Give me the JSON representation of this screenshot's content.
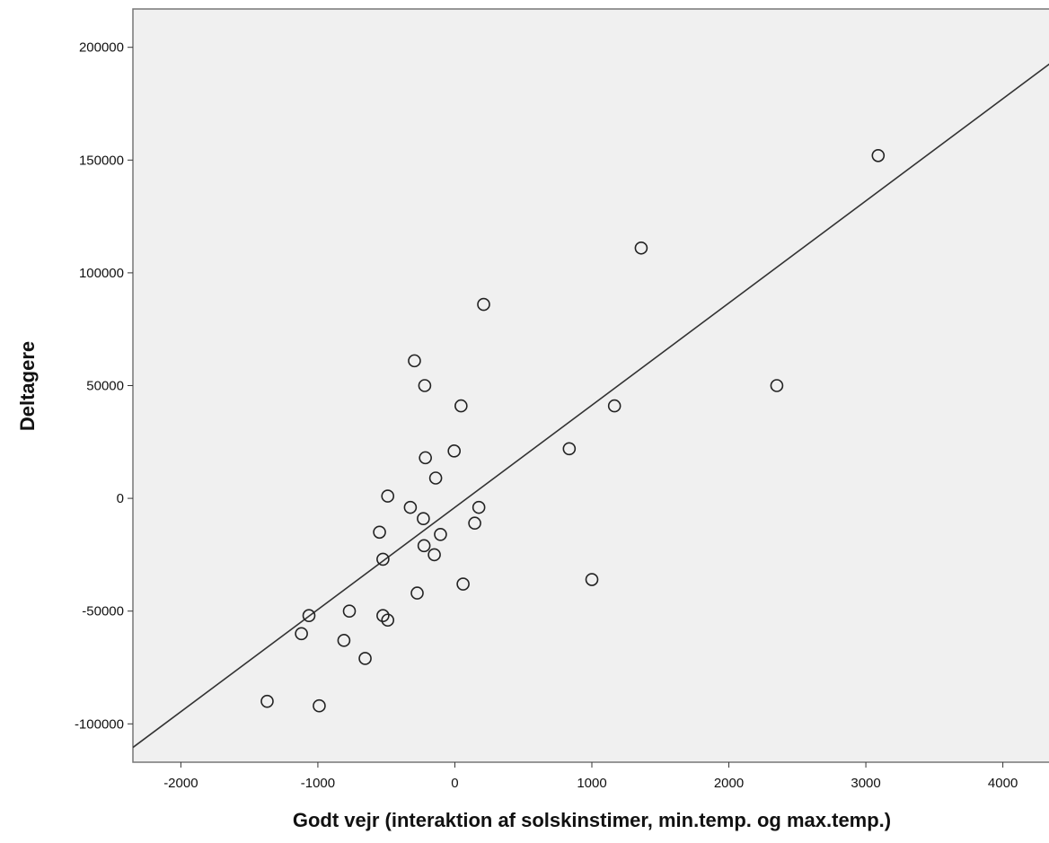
{
  "chart_data": {
    "type": "scatter",
    "xlabel": "Godt vejr (interaktion af solskinstimer, min.temp. og max.temp.)",
    "ylabel": "Deltagere",
    "xlim": [
      -2350,
      4350
    ],
    "ylim": [
      -117000,
      217000
    ],
    "xticks": [
      -2000,
      -1000,
      0,
      1000,
      2000,
      3000,
      4000
    ],
    "xtick_labels": [
      "-2000",
      "-1000",
      "0",
      "1000",
      "2000",
      "3000",
      "4000"
    ],
    "yticks": [
      -100000,
      -50000,
      0,
      50000,
      100000,
      150000,
      200000
    ],
    "ytick_labels": [
      "-100000",
      "-50000",
      "0",
      "50000",
      "100000",
      "150000",
      "200000"
    ],
    "grid": false,
    "legend": "none",
    "colors": {
      "plot_background": "#f0f0f0",
      "marker_edge": "#222222",
      "fit_line": "#333333",
      "axis": "#777777"
    },
    "points": [
      {
        "x": 3090,
        "y": 152000
      },
      {
        "x": 1360,
        "y": 111000
      },
      {
        "x": 210,
        "y": 86000
      },
      {
        "x": -295,
        "y": 61000
      },
      {
        "x": -220,
        "y": 50000
      },
      {
        "x": 2350,
        "y": 50000
      },
      {
        "x": 45,
        "y": 41000
      },
      {
        "x": 1165,
        "y": 41000
      },
      {
        "x": 835,
        "y": 22000
      },
      {
        "x": -5,
        "y": 21000
      },
      {
        "x": -215,
        "y": 18000
      },
      {
        "x": -140,
        "y": 9000
      },
      {
        "x": -490,
        "y": 1000
      },
      {
        "x": -325,
        "y": -4000
      },
      {
        "x": 175,
        "y": -4000
      },
      {
        "x": -230,
        "y": -9000
      },
      {
        "x": 145,
        "y": -11000
      },
      {
        "x": -550,
        "y": -15000
      },
      {
        "x": -105,
        "y": -16000
      },
      {
        "x": -225,
        "y": -21000
      },
      {
        "x": -150,
        "y": -25000
      },
      {
        "x": -525,
        "y": -27000
      },
      {
        "x": 1000,
        "y": -36000
      },
      {
        "x": 60,
        "y": -38000
      },
      {
        "x": -275,
        "y": -42000
      },
      {
        "x": -770,
        "y": -50000
      },
      {
        "x": -1065,
        "y": -52000
      },
      {
        "x": -525,
        "y": -52000
      },
      {
        "x": -490,
        "y": -54000
      },
      {
        "x": -1120,
        "y": -60000
      },
      {
        "x": -810,
        "y": -63000
      },
      {
        "x": -655,
        "y": -71000
      },
      {
        "x": -1370,
        "y": -90000
      },
      {
        "x": -990,
        "y": -92000
      }
    ],
    "fit_line": {
      "slope": 45.3,
      "intercept": -4000
    }
  }
}
